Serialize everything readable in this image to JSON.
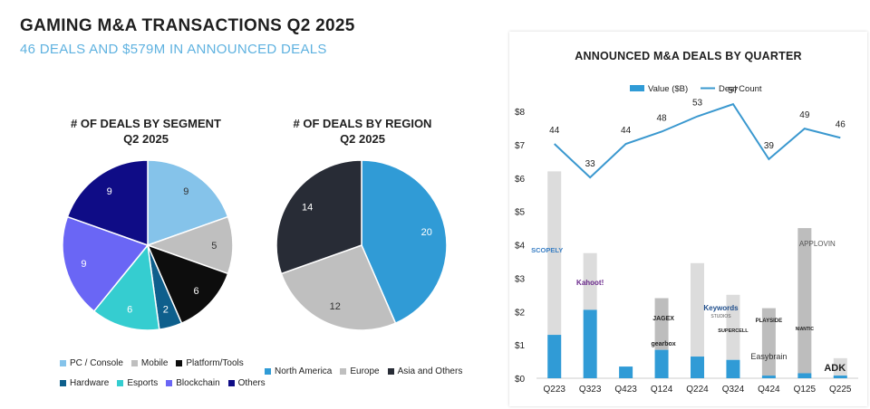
{
  "header": {
    "title": "GAMING M&A TRANSACTIONS Q2 2025",
    "subtitle": "46 DEALS AND $579M IN ANNOUNCED DEALS"
  },
  "chart_data": [
    {
      "type": "pie",
      "title": "# OF DEALS BY SEGMENT",
      "subtitle": "Q2 2025",
      "categories": [
        "PC / Console",
        "Mobile",
        "Platform/Tools",
        "Hardware",
        "Esports",
        "Blockchain",
        "Others"
      ],
      "values": [
        9,
        5,
        6,
        2,
        6,
        9,
        9
      ],
      "colors": [
        "#85c3ea",
        "#bfbfbf",
        "#0d0d0d",
        "#0e5f8c",
        "#35cdd0",
        "#6a66f5",
        "#0f0c86"
      ],
      "legend": "bottom"
    },
    {
      "type": "pie",
      "title": "# OF DEALS BY REGION",
      "subtitle": "Q2 2025",
      "categories": [
        "North America",
        "Europe",
        "Asia and Others"
      ],
      "values": [
        20,
        12,
        14
      ],
      "colors": [
        "#309bd6",
        "#bfbfbf",
        "#282c36"
      ],
      "legend": "bottom"
    },
    {
      "type": "bar",
      "title": "ANNOUNCED M&A DEALS BY QUARTER",
      "categories": [
        "Q223",
        "Q323",
        "Q423",
        "Q124",
        "Q224",
        "Q324",
        "Q424",
        "Q125",
        "Q225"
      ],
      "series": [
        {
          "name": "Value ($B)",
          "type": "bar",
          "values": [
            1.3,
            2.05,
            0.35,
            0.85,
            0.65,
            0.55,
            0.08,
            0.15,
            0.08
          ],
          "stack_total": [
            6.2,
            3.75,
            0.35,
            2.4,
            3.45,
            2.5,
            2.1,
            4.5,
            0.6
          ]
        },
        {
          "name": "Deal Count",
          "type": "line",
          "values": [
            44,
            33,
            44,
            48,
            53,
            57,
            39,
            49,
            46
          ]
        }
      ],
      "ylim": [
        0,
        8
      ],
      "yticks": [
        "$0",
        "$1",
        "$2",
        "$3",
        "$4",
        "$5",
        "$6",
        "$7",
        "$8"
      ],
      "legend": "top",
      "colors": {
        "bar": "#309bd6",
        "bar_other": "#dcdcdc",
        "bar_dark": "#bdbdbd",
        "line": "#3a98cf"
      },
      "annotations": [
        {
          "category": "Q223",
          "label": "SCOPELY"
        },
        {
          "category": "Q323",
          "label": "Kahoot!"
        },
        {
          "category": "Q124",
          "label": "JAGEX"
        },
        {
          "category": "Q124",
          "label": "gearbox"
        },
        {
          "category": "Q224",
          "label": "Keywords"
        },
        {
          "category": "Q224",
          "label": "STUDIOS"
        },
        {
          "category": "Q324",
          "label": "SUPERCELL"
        },
        {
          "category": "Q424",
          "label": "PLAYSIDE"
        },
        {
          "category": "Q424",
          "label": "Easybrain"
        },
        {
          "category": "Q125",
          "label": "NIANTIC"
        },
        {
          "category": "Q125",
          "label": "APPLOVIN"
        },
        {
          "category": "Q225",
          "label": "ADK"
        }
      ]
    }
  ]
}
